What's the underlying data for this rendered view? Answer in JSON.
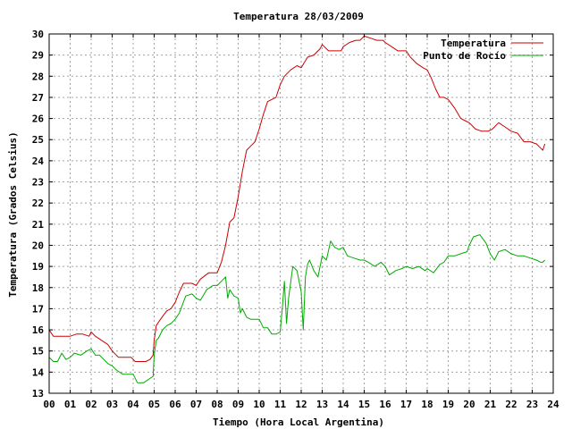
{
  "chart_data": {
    "type": "line",
    "title": "Temperatura 28/03/2009",
    "xlabel": "Tiempo (Hora Local Argentina)",
    "ylabel": "Temperatura (Grados Celsius)",
    "xlim": [
      0,
      24
    ],
    "ylim": [
      13,
      30
    ],
    "xticks": [
      "00",
      "01",
      "02",
      "03",
      "04",
      "05",
      "06",
      "07",
      "08",
      "09",
      "10",
      "11",
      "12",
      "13",
      "14",
      "15",
      "16",
      "17",
      "18",
      "19",
      "20",
      "21",
      "22",
      "23",
      "24"
    ],
    "yticks": [
      13,
      14,
      15,
      16,
      17,
      18,
      19,
      20,
      21,
      22,
      23,
      24,
      25,
      26,
      27,
      28,
      29,
      30
    ],
    "grid": true,
    "legend_position": "top-right",
    "series": [
      {
        "name": "Temperatura",
        "color": "#cc0000",
        "x": [
          0.0,
          0.2,
          0.4,
          0.7,
          1.0,
          1.3,
          1.6,
          1.9,
          2.0,
          2.2,
          2.5,
          2.8,
          3.0,
          3.3,
          3.6,
          3.9,
          4.1,
          4.3,
          4.6,
          4.8,
          4.95,
          5.0,
          5.1,
          5.3,
          5.6,
          5.8,
          6.0,
          6.2,
          6.4,
          6.8,
          7.0,
          7.2,
          7.6,
          8.0,
          8.2,
          8.4,
          8.6,
          8.8,
          9.0,
          9.2,
          9.4,
          9.6,
          9.8,
          10.0,
          10.2,
          10.4,
          10.6,
          10.8,
          11.0,
          11.2,
          11.5,
          11.8,
          12.0,
          12.3,
          12.6,
          12.9,
          13.0,
          13.3,
          13.6,
          13.9,
          14.0,
          14.3,
          14.6,
          14.8,
          15.0,
          15.3,
          15.6,
          15.9,
          16.0,
          16.3,
          16.6,
          16.9,
          17.0,
          17.2,
          17.5,
          17.8,
          18.0,
          18.2,
          18.4,
          18.6,
          18.8,
          19.0,
          19.3,
          19.6,
          19.8,
          20.0,
          20.3,
          20.6,
          20.9,
          21.1,
          21.4,
          21.7,
          22.0,
          22.3,
          22.6,
          22.9,
          23.2,
          23.4,
          23.5,
          23.6
        ],
        "values": [
          16.0,
          15.7,
          15.7,
          15.7,
          15.7,
          15.8,
          15.8,
          15.7,
          15.9,
          15.7,
          15.5,
          15.3,
          15.0,
          14.7,
          14.7,
          14.7,
          14.5,
          14.5,
          14.5,
          14.6,
          14.8,
          15.5,
          16.2,
          16.5,
          16.9,
          17.0,
          17.3,
          17.8,
          18.2,
          18.2,
          18.1,
          18.4,
          18.7,
          18.7,
          19.2,
          20.0,
          21.1,
          21.3,
          22.3,
          23.5,
          24.5,
          24.7,
          24.9,
          25.5,
          26.2,
          26.8,
          26.9,
          27.0,
          27.6,
          28.0,
          28.3,
          28.5,
          28.4,
          28.9,
          29.0,
          29.3,
          29.5,
          29.2,
          29.2,
          29.2,
          29.4,
          29.6,
          29.7,
          29.7,
          29.9,
          29.8,
          29.7,
          29.7,
          29.6,
          29.4,
          29.2,
          29.2,
          29.2,
          28.9,
          28.6,
          28.4,
          28.3,
          27.9,
          27.4,
          27.0,
          27.0,
          26.9,
          26.5,
          26.0,
          25.9,
          25.8,
          25.5,
          25.4,
          25.4,
          25.5,
          25.8,
          25.6,
          25.4,
          25.3,
          24.9,
          24.9,
          24.8,
          24.6,
          24.5,
          24.8
        ]
      },
      {
        "name": "Punto de Rocío",
        "color": "#00aa00",
        "x": [
          0.0,
          0.2,
          0.4,
          0.6,
          0.8,
          1.0,
          1.2,
          1.5,
          1.8,
          2.0,
          2.2,
          2.4,
          2.6,
          2.8,
          3.0,
          3.2,
          3.5,
          3.8,
          4.0,
          4.2,
          4.5,
          4.8,
          4.95,
          5.0,
          5.1,
          5.2,
          5.4,
          5.6,
          5.8,
          6.0,
          6.2,
          6.5,
          6.8,
          7.0,
          7.2,
          7.5,
          7.8,
          8.0,
          8.2,
          8.4,
          8.5,
          8.6,
          8.8,
          9.0,
          9.1,
          9.2,
          9.4,
          9.6,
          9.8,
          10.0,
          10.2,
          10.4,
          10.6,
          10.8,
          11.0,
          11.1,
          11.2,
          11.3,
          11.4,
          11.6,
          11.8,
          12.0,
          12.1,
          12.2,
          12.3,
          12.4,
          12.6,
          12.8,
          13.0,
          13.2,
          13.4,
          13.6,
          13.8,
          14.0,
          14.2,
          14.5,
          14.8,
          15.0,
          15.2,
          15.5,
          15.8,
          16.0,
          16.2,
          16.5,
          16.8,
          17.0,
          17.3,
          17.6,
          17.9,
          18.0,
          18.3,
          18.6,
          18.8,
          19.0,
          19.3,
          19.6,
          19.9,
          20.0,
          20.2,
          20.5,
          20.8,
          21.0,
          21.2,
          21.4,
          21.7,
          22.0,
          22.3,
          22.6,
          22.9,
          23.2,
          23.4,
          23.5,
          23.6
        ],
        "values": [
          14.7,
          14.5,
          14.5,
          14.9,
          14.6,
          14.7,
          14.9,
          14.8,
          15.0,
          15.1,
          14.8,
          14.8,
          14.6,
          14.4,
          14.3,
          14.1,
          13.9,
          13.9,
          13.9,
          13.5,
          13.5,
          13.7,
          13.8,
          14.8,
          15.5,
          15.6,
          16.0,
          16.2,
          16.3,
          16.5,
          16.8,
          17.6,
          17.7,
          17.5,
          17.4,
          17.9,
          18.1,
          18.1,
          18.3,
          18.5,
          17.5,
          17.9,
          17.6,
          17.5,
          16.8,
          17.0,
          16.6,
          16.5,
          16.5,
          16.5,
          16.1,
          16.1,
          15.8,
          15.8,
          15.9,
          17.0,
          18.3,
          16.3,
          17.5,
          19.0,
          18.8,
          17.8,
          16.0,
          18.5,
          19.1,
          19.3,
          18.8,
          18.5,
          19.5,
          19.3,
          20.2,
          19.9,
          19.8,
          19.9,
          19.5,
          19.4,
          19.3,
          19.3,
          19.2,
          19.0,
          19.2,
          19.0,
          18.6,
          18.8,
          18.9,
          19.0,
          18.9,
          19.0,
          18.8,
          18.9,
          18.7,
          19.1,
          19.2,
          19.5,
          19.5,
          19.6,
          19.7,
          20.0,
          20.4,
          20.5,
          20.1,
          19.6,
          19.3,
          19.7,
          19.8,
          19.6,
          19.5,
          19.5,
          19.4,
          19.3,
          19.2,
          19.2,
          19.3
        ]
      }
    ]
  }
}
